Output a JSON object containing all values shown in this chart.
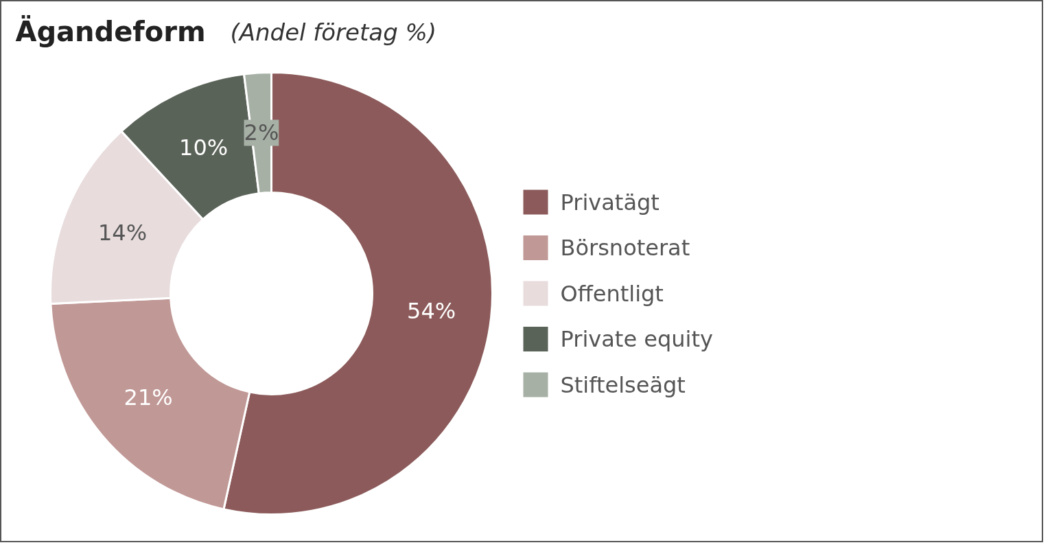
{
  "chart_data": {
    "type": "donut",
    "title": "Ägandeform",
    "subtitle": "(Andel företag %)",
    "categories": [
      "Privatägt",
      "Börsnoterat",
      "Offentligt",
      "Private equity",
      "Stiftelseägt"
    ],
    "values": [
      54,
      21,
      14,
      10,
      2
    ],
    "colors": [
      "#8c5a5a",
      "#c09896",
      "#e8dcdd",
      "#5a6358",
      "#a6b0a5"
    ],
    "value_labels": [
      "54%",
      "21%",
      "14%",
      "10%",
      "2%"
    ],
    "legend": "right"
  }
}
